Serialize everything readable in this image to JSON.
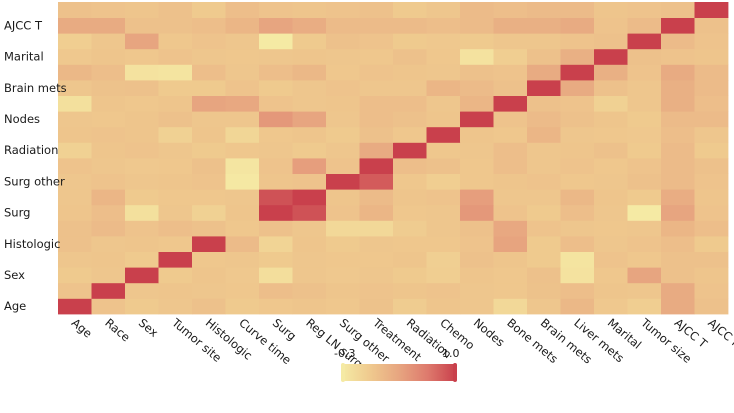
{
  "chart_data": {
    "type": "heatmap",
    "title": "",
    "xlabel": "",
    "ylabel": "",
    "x_categories": [
      "Age",
      "Race",
      "Sex",
      "Tumor site",
      "Histologic",
      "Curve time",
      "Surg",
      "Reg LN surg",
      "Surg other",
      "Treatment",
      "Radiation",
      "Chemo",
      "Nodes",
      "Bone mets",
      "Brain mets",
      "Liver mets",
      "Marital",
      "Tumor size",
      "AJCC T",
      "AJCC N"
    ],
    "y_categories": [
      "Age",
      "Race",
      "Sex",
      "Tumor site",
      "Histologic",
      "Curve time",
      "Surg",
      "Reg LN surg",
      "Surg other",
      "Treatment",
      "Radiation",
      "Chemo",
      "Nodes",
      "Bone mets",
      "Brain mets",
      "Liver mets",
      "Marital",
      "Tumor size",
      "AJCC T",
      "AJCC N"
    ],
    "y_tick_labels_shown": [
      "Age",
      "Sex",
      "Histologic",
      "Surg",
      "Surg other",
      "Radiation",
      "Nodes",
      "Brain mets",
      "Marital",
      "AJCC T"
    ],
    "values": [
      [
        1.0,
        0.08,
        0.02,
        0.05,
        0.1,
        0.02,
        0.04,
        0.06,
        0.04,
        0.09,
        0.0,
        0.06,
        0.05,
        -0.12,
        0.05,
        0.18,
        0.03,
        -0.02,
        0.3,
        0.1
      ],
      [
        0.08,
        1.0,
        0.05,
        0.06,
        0.05,
        0.04,
        0.12,
        0.1,
        0.06,
        0.08,
        0.06,
        0.08,
        0.05,
        0.04,
        0.09,
        0.12,
        0.06,
        0.05,
        0.3,
        0.08
      ],
      [
        0.02,
        0.05,
        1.0,
        0.02,
        0.06,
        0.03,
        -0.18,
        0.05,
        0.03,
        0.05,
        0.02,
        -0.02,
        0.06,
        0.04,
        0.1,
        -0.22,
        0.04,
        0.35,
        0.1,
        0.06
      ],
      [
        0.05,
        0.06,
        0.02,
        1.0,
        0.04,
        0.05,
        0.02,
        0.05,
        0.04,
        0.04,
        0.06,
        -0.03,
        0.1,
        0.06,
        0.02,
        -0.24,
        0.08,
        0.04,
        0.1,
        0.1
      ],
      [
        0.1,
        0.05,
        0.06,
        0.04,
        1.0,
        0.15,
        -0.08,
        0.06,
        0.02,
        0.05,
        0.04,
        0.04,
        0.08,
        0.36,
        0.02,
        0.12,
        0.05,
        0.08,
        0.12,
        0.02
      ],
      [
        0.1,
        0.15,
        0.08,
        0.12,
        0.1,
        0.04,
        0.1,
        0.05,
        -0.12,
        -0.12,
        0.0,
        0.05,
        0.1,
        0.32,
        0.08,
        0.05,
        0.04,
        0.05,
        0.2,
        0.12
      ],
      [
        0.06,
        0.12,
        -0.2,
        0.05,
        -0.05,
        0.06,
        1.0,
        0.9,
        0.08,
        0.2,
        0.04,
        0.05,
        0.45,
        0.08,
        0.02,
        0.12,
        0.05,
        -0.3,
        0.35,
        0.08
      ],
      [
        0.05,
        0.2,
        0.02,
        0.04,
        0.04,
        0.05,
        0.9,
        1.0,
        0.06,
        0.15,
        0.06,
        0.08,
        0.4,
        0.05,
        0.05,
        0.18,
        0.06,
        0.02,
        0.28,
        0.06
      ],
      [
        0.05,
        0.08,
        0.05,
        0.06,
        0.08,
        -0.28,
        0.06,
        0.08,
        1.0,
        0.85,
        0.04,
        -0.02,
        0.04,
        0.06,
        0.08,
        0.04,
        0.05,
        0.1,
        0.15,
        0.08
      ],
      [
        0.08,
        0.05,
        0.03,
        0.04,
        0.1,
        -0.25,
        0.08,
        0.4,
        0.08,
        1.0,
        0.12,
        0.1,
        0.04,
        0.12,
        0.05,
        0.08,
        0.04,
        0.08,
        0.15,
        0.1
      ],
      [
        -0.05,
        0.06,
        0.08,
        0.05,
        0.02,
        0.04,
        0.05,
        0.02,
        0.05,
        0.3,
        1.0,
        0.04,
        0.05,
        0.12,
        0.05,
        0.06,
        0.1,
        0.02,
        0.15,
        0.02
      ],
      [
        0.06,
        0.08,
        0.06,
        -0.05,
        0.06,
        -0.1,
        0.04,
        0.06,
        0.02,
        0.1,
        0.04,
        1.0,
        0.06,
        0.04,
        0.2,
        0.05,
        0.04,
        0.03,
        0.12,
        0.05
      ],
      [
        0.05,
        0.04,
        0.06,
        0.1,
        0.05,
        0.05,
        0.45,
        0.35,
        0.05,
        0.12,
        0.1,
        0.06,
        1.0,
        0.08,
        0.15,
        0.1,
        0.06,
        0.02,
        0.15,
        0.15
      ],
      [
        -0.2,
        0.06,
        0.04,
        0.06,
        0.35,
        0.32,
        0.08,
        0.05,
        0.06,
        0.12,
        0.12,
        0.05,
        0.2,
        1.0,
        0.1,
        0.08,
        -0.05,
        0.05,
        0.25,
        0.12
      ],
      [
        0.05,
        0.09,
        0.1,
        0.02,
        0.02,
        0.08,
        0.02,
        0.05,
        0.08,
        0.05,
        0.05,
        0.2,
        0.15,
        0.1,
        1.0,
        0.3,
        0.1,
        0.05,
        0.25,
        0.15
      ],
      [
        0.18,
        0.12,
        -0.22,
        -0.24,
        0.12,
        0.05,
        0.12,
        0.18,
        0.04,
        0.08,
        0.06,
        0.05,
        0.1,
        0.08,
        0.3,
        1.0,
        0.25,
        0.08,
        0.3,
        0.15
      ],
      [
        0.03,
        0.06,
        0.04,
        0.08,
        0.05,
        0.04,
        0.05,
        0.06,
        0.05,
        0.04,
        0.1,
        0.04,
        -0.22,
        -0.02,
        0.1,
        0.25,
        1.0,
        0.1,
        0.08,
        0.06
      ],
      [
        -0.02,
        0.05,
        0.35,
        0.04,
        0.08,
        0.05,
        -0.3,
        0.02,
        0.1,
        0.08,
        0.02,
        0.03,
        0.02,
        0.05,
        0.05,
        0.08,
        0.1,
        1.0,
        0.15,
        0.08
      ],
      [
        0.3,
        0.3,
        0.1,
        0.1,
        0.12,
        0.2,
        0.35,
        0.28,
        0.15,
        0.15,
        0.15,
        0.12,
        0.15,
        0.25,
        0.25,
        0.3,
        0.08,
        0.15,
        1.0,
        0.1
      ],
      [
        0.1,
        0.08,
        0.06,
        0.1,
        0.02,
        0.12,
        0.08,
        0.06,
        0.08,
        0.1,
        0.02,
        0.05,
        0.15,
        0.12,
        0.15,
        0.15,
        0.06,
        0.08,
        0.1,
        1.0
      ]
    ],
    "colorbar": {
      "min": -0.3,
      "max": 1.0,
      "min_label": "-0.3",
      "max_label": "1.0",
      "colors": [
        "#f5eaa4",
        "#efc98e",
        "#e7a580",
        "#de7a6d",
        "#c9404c"
      ]
    }
  }
}
